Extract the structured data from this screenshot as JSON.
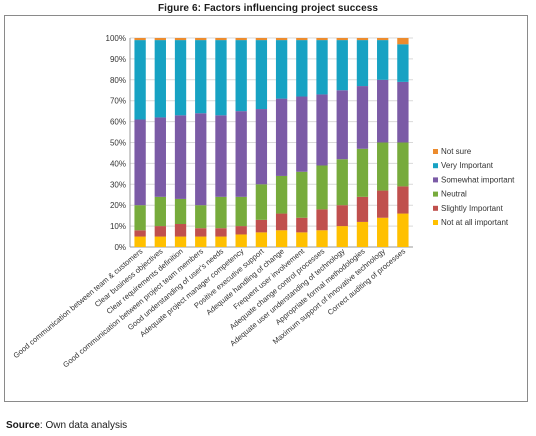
{
  "figure": {
    "title": "Figure 6: Factors influencing project success",
    "source_label": "Source",
    "source_text": ": Own data analysis"
  },
  "chart_data": {
    "type": "bar",
    "stacked": "percent",
    "title": "",
    "xlabel": "",
    "ylabel": "",
    "ylim": [
      0,
      100
    ],
    "yticks": [
      "0%",
      "10%",
      "20%",
      "30%",
      "40%",
      "50%",
      "60%",
      "70%",
      "80%",
      "90%",
      "100%"
    ],
    "grid": true,
    "legend_position": "right",
    "categories": [
      "Good communication between team & customers",
      "Clear business objectives",
      "Clear requirements definition",
      "Good communication between project team members",
      "Good understanding of user's needs",
      "Adequate project manager competency",
      "Positive executive support",
      "Adequate handling of change",
      "Frequent user involvement",
      "Adequate change control processes",
      "Adequate user understanding of technology",
      "Appropriate formal methodologies",
      "Maximum support of innovative technology",
      "Correct auditing of processes"
    ],
    "series": [
      {
        "name": "Not at all important",
        "color": "#ffc000",
        "values": [
          5,
          5,
          5,
          5,
          5,
          6,
          7,
          8,
          7,
          8,
          10,
          12,
          14,
          16
        ]
      },
      {
        "name": "Slightly Important",
        "color": "#c0504d",
        "values": [
          3,
          5,
          6,
          4,
          4,
          4,
          6,
          8,
          7,
          10,
          10,
          12,
          13,
          13
        ]
      },
      {
        "name": "Neutral",
        "color": "#77ab3c",
        "values": [
          12,
          14,
          12,
          11,
          15,
          14,
          17,
          18,
          22,
          21,
          22,
          23,
          23,
          21
        ]
      },
      {
        "name": "Somewhat important",
        "color": "#7b5ba6",
        "values": [
          41,
          38,
          40,
          44,
          39,
          41,
          36,
          37,
          36,
          34,
          33,
          30,
          30,
          29
        ]
      },
      {
        "name": "Very Important",
        "color": "#17a2c3",
        "values": [
          38,
          37,
          36,
          35,
          36,
          34,
          33,
          28,
          27,
          26,
          24,
          22,
          19,
          18
        ]
      },
      {
        "name": "Not sure",
        "color": "#ec8b2d",
        "values": [
          1,
          1,
          1,
          1,
          1,
          1,
          1,
          1,
          1,
          1,
          1,
          1,
          1,
          3
        ]
      }
    ]
  }
}
